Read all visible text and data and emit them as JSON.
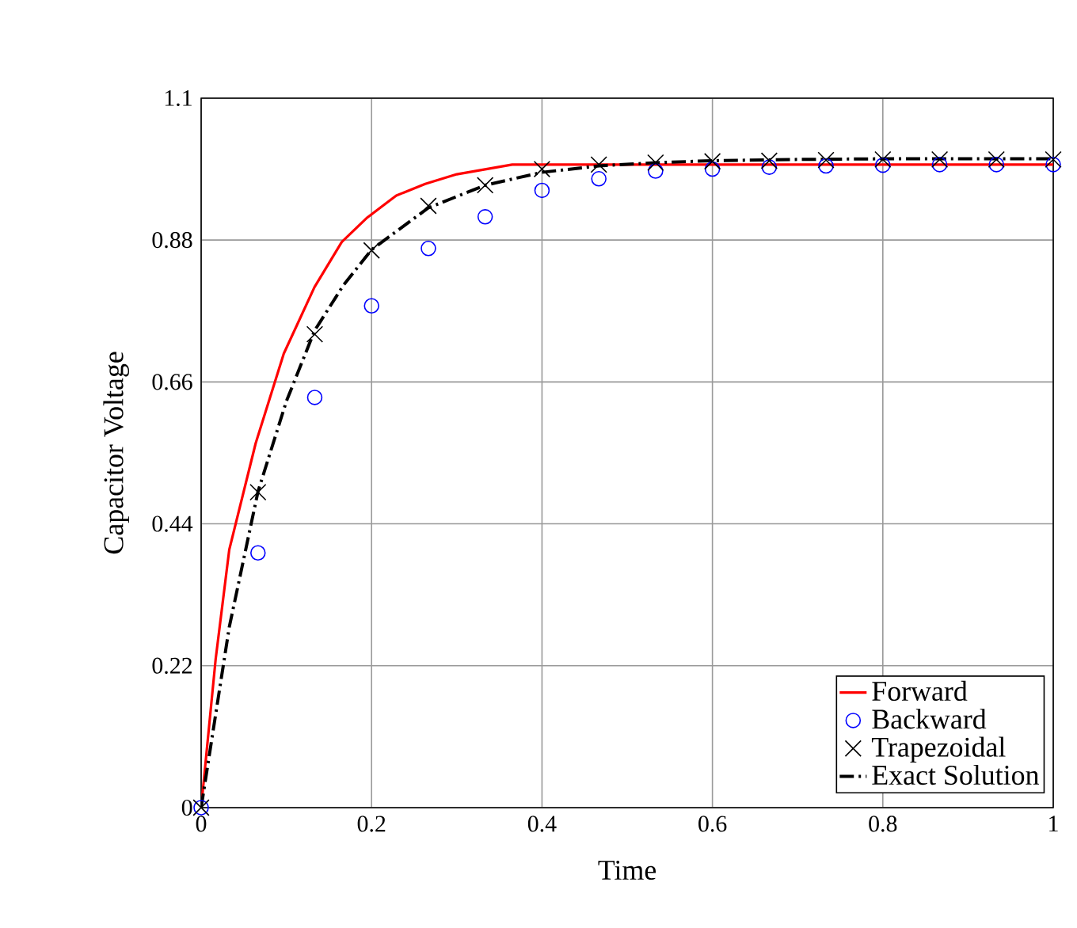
{
  "chart_data": {
    "type": "line",
    "xlabel": "Time",
    "ylabel": "Capacitor Voltage",
    "xlim": [
      0,
      1
    ],
    "ylim": [
      0,
      1.1
    ],
    "xticks": [
      0,
      0.2,
      0.4,
      0.6,
      0.8,
      1
    ],
    "yticks": [
      0,
      0.22,
      0.44,
      0.66,
      0.88,
      1.1
    ],
    "grid": true,
    "legend": "bottom right",
    "series": [
      {
        "name": "Forward",
        "color": "#ff0000",
        "line_style": "solid",
        "marker": "none",
        "x": [
          0,
          0.017,
          0.033,
          0.064,
          0.097,
          0.133,
          0.165,
          0.195,
          0.229,
          0.263,
          0.3,
          0.365,
          0.4,
          0.5,
          0.6,
          0.7,
          0.8,
          0.9,
          1
        ],
        "values": [
          0,
          0.23,
          0.4,
          0.565,
          0.704,
          0.807,
          0.877,
          0.915,
          0.949,
          0.967,
          0.982,
          0.997,
          0.997,
          0.997,
          0.997,
          0.997,
          0.997,
          0.997,
          0.997
        ]
      },
      {
        "name": "Backward",
        "type": "scatter",
        "color": "#0000ff",
        "marker": "circle",
        "x": [
          0,
          0.0667,
          0.1333,
          0.2,
          0.2667,
          0.3333,
          0.4,
          0.4667,
          0.5333,
          0.6,
          0.6667,
          0.7333,
          0.8,
          0.8667,
          0.9333,
          1
        ],
        "values": [
          0,
          0.395,
          0.636,
          0.778,
          0.867,
          0.916,
          0.957,
          0.975,
          0.987,
          0.99,
          0.993,
          0.995,
          0.996,
          0.997,
          0.997,
          0.997
        ]
      },
      {
        "name": "Trapezoidal",
        "type": "scatter",
        "color": "#000000",
        "marker": "cross",
        "x": [
          0,
          0.0667,
          0.1333,
          0.2,
          0.2667,
          0.3333,
          0.4,
          0.4667,
          0.5333,
          0.6,
          0.6667,
          0.7333,
          0.8,
          0.8667,
          0.9333,
          1
        ],
        "values": [
          0,
          0.489,
          0.734,
          0.864,
          0.933,
          0.965,
          0.99,
          0.997,
          1.0,
          1.002,
          1.003,
          1.004,
          1.005,
          1.005,
          1.005,
          1.005
        ]
      },
      {
        "name": "Exact Solution",
        "color": "#000000",
        "line_style": "dashdot",
        "marker": "none",
        "x": [
          0,
          0.033,
          0.0667,
          0.1,
          0.1333,
          0.167,
          0.2,
          0.2667,
          0.3333,
          0.4,
          0.4667,
          0.5333,
          0.6,
          0.7,
          0.8,
          0.9,
          1
        ],
        "values": [
          0,
          0.28,
          0.49,
          0.63,
          0.74,
          0.81,
          0.865,
          0.93,
          0.965,
          0.985,
          0.995,
          1.0,
          1.003,
          1.005,
          1.006,
          1.006,
          1.006
        ]
      }
    ]
  }
}
